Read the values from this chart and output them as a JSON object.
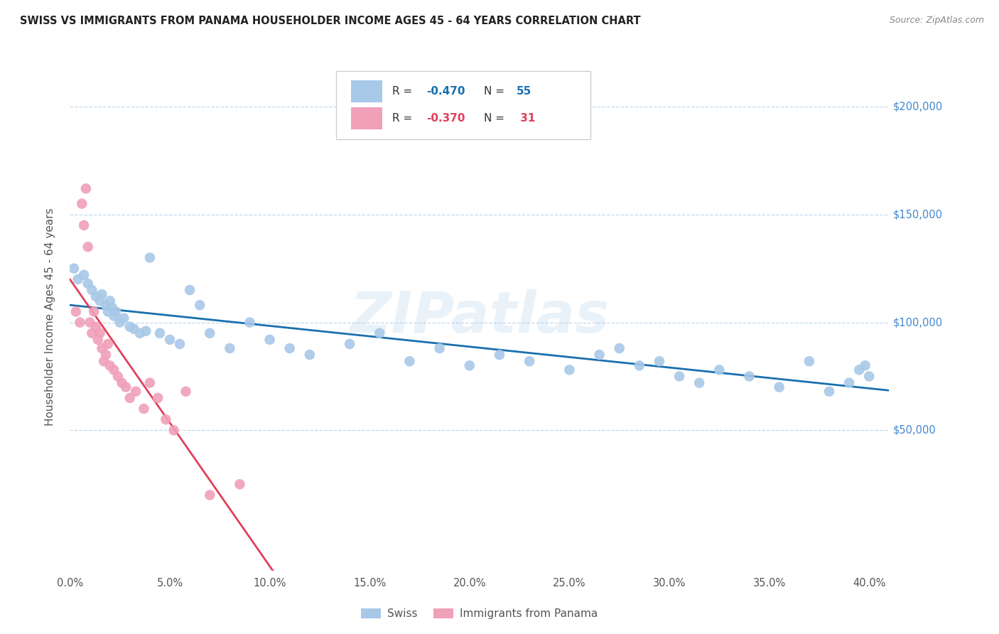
{
  "title": "SWISS VS IMMIGRANTS FROM PANAMA HOUSEHOLDER INCOME AGES 45 - 64 YEARS CORRELATION CHART",
  "source": "Source: ZipAtlas.com",
  "ylabel": "Householder Income Ages 45 - 64 years",
  "xlim": [
    0.0,
    0.42
  ],
  "ylim": [
    -10000,
    220000
  ],
  "swiss_color": "#a8c8e8",
  "swiss_line_color": "#1a6fad",
  "panama_color": "#f0a0b8",
  "panama_line_color": "#e0405a",
  "dash_color": "#cccccc",
  "watermark": "ZIPatlas",
  "swiss_x": [
    0.002,
    0.004,
    0.007,
    0.009,
    0.011,
    0.013,
    0.015,
    0.016,
    0.018,
    0.019,
    0.02,
    0.021,
    0.022,
    0.023,
    0.025,
    0.027,
    0.03,
    0.032,
    0.035,
    0.038,
    0.04,
    0.045,
    0.05,
    0.055,
    0.06,
    0.065,
    0.07,
    0.08,
    0.09,
    0.1,
    0.11,
    0.12,
    0.14,
    0.155,
    0.17,
    0.185,
    0.2,
    0.215,
    0.23,
    0.25,
    0.265,
    0.275,
    0.285,
    0.295,
    0.305,
    0.315,
    0.325,
    0.34,
    0.355,
    0.37,
    0.38,
    0.39,
    0.395,
    0.398,
    0.4
  ],
  "swiss_y": [
    125000,
    120000,
    122000,
    118000,
    115000,
    112000,
    110000,
    113000,
    108000,
    105000,
    110000,
    107000,
    103000,
    105000,
    100000,
    102000,
    98000,
    97000,
    95000,
    96000,
    130000,
    95000,
    92000,
    90000,
    115000,
    108000,
    95000,
    88000,
    100000,
    92000,
    88000,
    85000,
    90000,
    95000,
    82000,
    88000,
    80000,
    85000,
    82000,
    78000,
    85000,
    88000,
    80000,
    82000,
    75000,
    72000,
    78000,
    75000,
    70000,
    82000,
    68000,
    72000,
    78000,
    80000,
    75000
  ],
  "panama_x": [
    0.003,
    0.005,
    0.006,
    0.007,
    0.008,
    0.009,
    0.01,
    0.011,
    0.012,
    0.013,
    0.014,
    0.015,
    0.016,
    0.017,
    0.018,
    0.019,
    0.02,
    0.022,
    0.024,
    0.026,
    0.028,
    0.03,
    0.033,
    0.037,
    0.04,
    0.044,
    0.048,
    0.052,
    0.058,
    0.07,
    0.085
  ],
  "panama_y": [
    105000,
    100000,
    155000,
    145000,
    162000,
    135000,
    100000,
    95000,
    105000,
    98000,
    92000,
    95000,
    88000,
    82000,
    85000,
    90000,
    80000,
    78000,
    75000,
    72000,
    70000,
    65000,
    68000,
    60000,
    72000,
    65000,
    55000,
    50000,
    68000,
    20000,
    25000
  ],
  "x_ticks": [
    0.0,
    0.05,
    0.1,
    0.15,
    0.2,
    0.25,
    0.3,
    0.35,
    0.4
  ],
  "x_tick_labels": [
    "0.0%",
    "5.0%",
    "10.0%",
    "15.0%",
    "20.0%",
    "25.0%",
    "30.0%",
    "35.0%",
    "40.0%"
  ],
  "y_ticks": [
    50000,
    100000,
    150000,
    200000
  ],
  "y_tick_labels": [
    "$50,000",
    "$100,000",
    "$150,000",
    "$200,000"
  ],
  "swiss_R": "-0.470",
  "swiss_N": "55",
  "panama_R": "-0.370",
  "panama_N": "31"
}
